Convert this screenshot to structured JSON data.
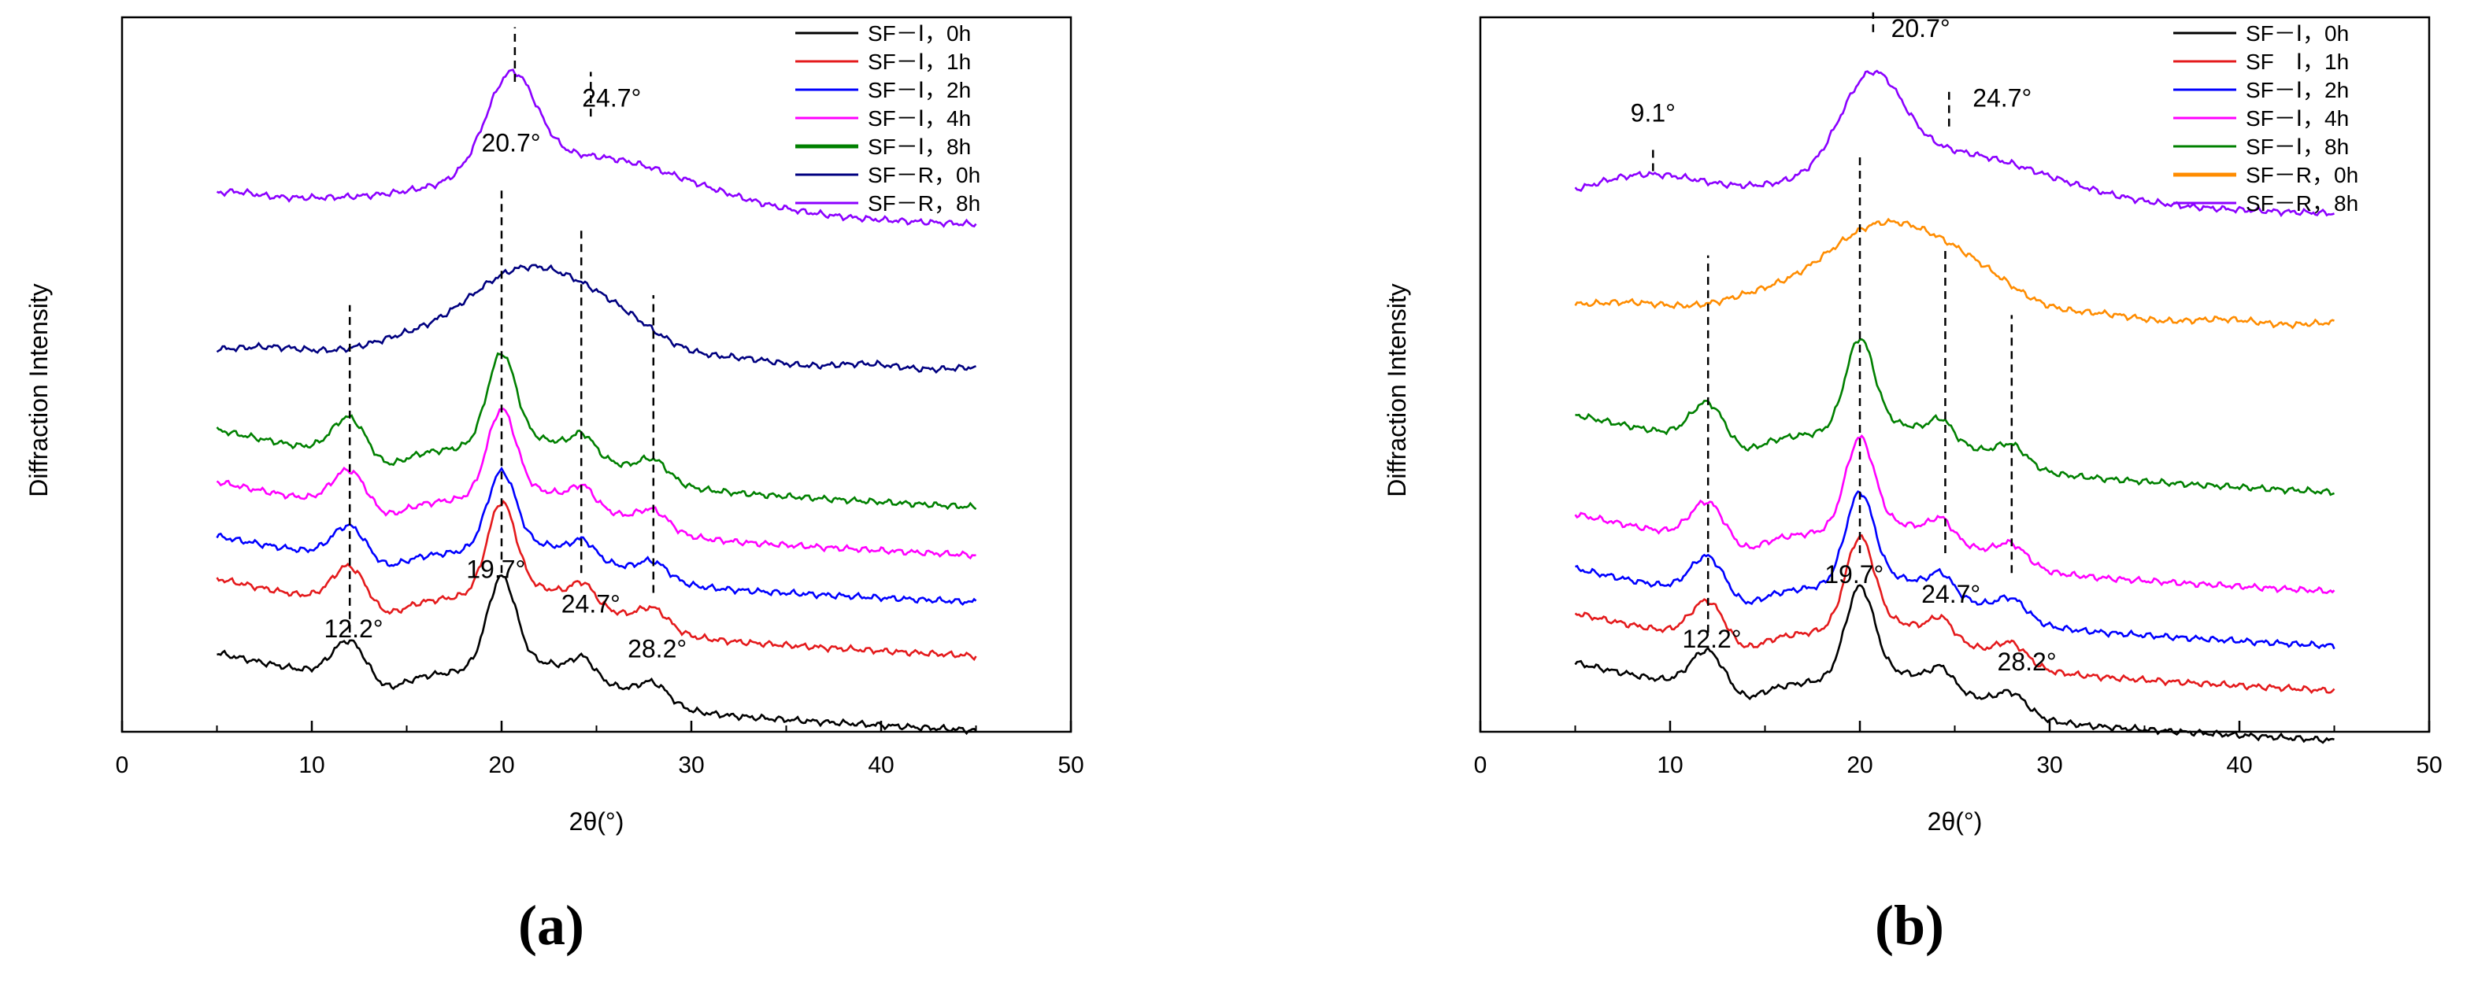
{
  "chart_data": [
    {
      "type": "line",
      "panel": "(a)",
      "xlabel": "2θ(°)",
      "ylabel": "Diffraction Intensity",
      "xlim": [
        0,
        50
      ],
      "ylim": [
        0,
        7.2
      ],
      "xticks": [
        0,
        10,
        20,
        30,
        40,
        50
      ],
      "minor_xticks": [
        5,
        15,
        25,
        35,
        45
      ],
      "legend_position": "top-right",
      "series": [
        {
          "name": "SF－Ⅰ，0h",
          "color": "#000000",
          "offset": 0.3,
          "scale": 1.0,
          "type": "silk"
        },
        {
          "name": "SF－Ⅰ，1h",
          "color": "#e41a1c",
          "offset": 1.05,
          "scale": 1.0,
          "type": "silk"
        },
        {
          "name": "SF－Ⅰ，2h",
          "color": "#0000ff",
          "offset": 1.55,
          "scale": 0.85,
          "type": "silk"
        },
        {
          "name": "SF－Ⅰ，4h",
          "color": "#ff00ff",
          "offset": 2.05,
          "scale": 0.95,
          "type": "silk"
        },
        {
          "name": "SF－Ⅰ，8h",
          "color": "#008000",
          "offset": 2.55,
          "scale": 1.0,
          "type": "silk"
        },
        {
          "name": "SF－R，0h",
          "color": "#000080",
          "offset": 3.65,
          "scale": 1.0,
          "type": "broad"
        },
        {
          "name": "SF－R，8h",
          "color": "#8b00ff",
          "offset": 5.15,
          "scale": 1.0,
          "type": "sharp"
        }
      ],
      "annotations": [
        {
          "text": "12.2°",
          "x": 12.2,
          "y": 0.95
        },
        {
          "text": "19.7°",
          "x": 19.7,
          "y": 1.55
        },
        {
          "text": "24.7°",
          "x": 24.7,
          "y": 1.2
        },
        {
          "text": "28.2°",
          "x": 28.2,
          "y": 0.75
        },
        {
          "text": "20.7°",
          "x": 20.5,
          "y": 5.85
        },
        {
          "text": "24.7°",
          "x": 25.8,
          "y": 6.3
        }
      ],
      "reference_lines": [
        {
          "x": 12.0,
          "y1": 1.0,
          "y2": 4.3
        },
        {
          "x": 20.0,
          "y1": 1.6,
          "y2": 5.5
        },
        {
          "x": 24.2,
          "y1": 1.6,
          "y2": 5.1
        },
        {
          "x": 28.0,
          "y1": 1.4,
          "y2": 4.4
        },
        {
          "x": 20.7,
          "y1": 6.55,
          "y2": 7.1
        },
        {
          "x": 24.7,
          "y1": 6.2,
          "y2": 6.65
        }
      ]
    },
    {
      "type": "line",
      "panel": "(b)",
      "xlabel": "2θ(°)",
      "ylabel": "Diffraction Intensity",
      "xlim": [
        0,
        50
      ],
      "ylim": [
        0,
        7.2
      ],
      "xticks": [
        0,
        10,
        20,
        30,
        40,
        50
      ],
      "minor_xticks": [
        5,
        15,
        25,
        35,
        45
      ],
      "legend_position": "top-right",
      "series": [
        {
          "name": "SF－Ⅰ，0h",
          "color": "#000000",
          "offset": 0.2,
          "scale": 1.0,
          "type": "silk"
        },
        {
          "name": "SF　Ⅰ，1h",
          "color": "#e41a1c",
          "offset": 0.7,
          "scale": 1.0,
          "type": "silk"
        },
        {
          "name": "SF－Ⅰ，2h",
          "color": "#0000ff",
          "offset": 1.15,
          "scale": 1.0,
          "type": "silk"
        },
        {
          "name": "SF－Ⅰ，4h",
          "color": "#ff00ff",
          "offset": 1.7,
          "scale": 1.0,
          "type": "silk"
        },
        {
          "name": "SF－Ⅰ，8h",
          "color": "#008000",
          "offset": 2.7,
          "scale": 1.0,
          "type": "silk"
        },
        {
          "name": "SF－R，0h",
          "color": "#ff8c00",
          "offset": 4.1,
          "scale": 1.0,
          "type": "broad"
        },
        {
          "name": "SF－R，8h",
          "color": "#8b00ff",
          "offset": 5.25,
          "scale": 1.0,
          "type": "sharp9"
        }
      ],
      "annotations": [
        {
          "text": "12.2°",
          "x": 12.2,
          "y": 0.85
        },
        {
          "text": "19.7°",
          "x": 19.7,
          "y": 1.5
        },
        {
          "text": "24.7°",
          "x": 24.8,
          "y": 1.3
        },
        {
          "text": "28.2°",
          "x": 28.8,
          "y": 0.62
        },
        {
          "text": "20.7°",
          "x": 23.2,
          "y": 7.0
        },
        {
          "text": "24.7°",
          "x": 27.5,
          "y": 6.3
        },
        {
          "text": "9.1°",
          "x": 9.1,
          "y": 6.15
        }
      ],
      "reference_lines": [
        {
          "x": 12.0,
          "y1": 1.0,
          "y2": 4.8
        },
        {
          "x": 20.0,
          "y1": 1.8,
          "y2": 5.8
        },
        {
          "x": 24.5,
          "y1": 1.8,
          "y2": 4.9
        },
        {
          "x": 28.0,
          "y1": 1.6,
          "y2": 4.2
        },
        {
          "x": 20.7,
          "y1": 7.05,
          "y2": 7.25
        },
        {
          "x": 24.7,
          "y1": 6.1,
          "y2": 6.45
        },
        {
          "x": 9.1,
          "y1": 5.65,
          "y2": 5.9
        }
      ]
    }
  ]
}
